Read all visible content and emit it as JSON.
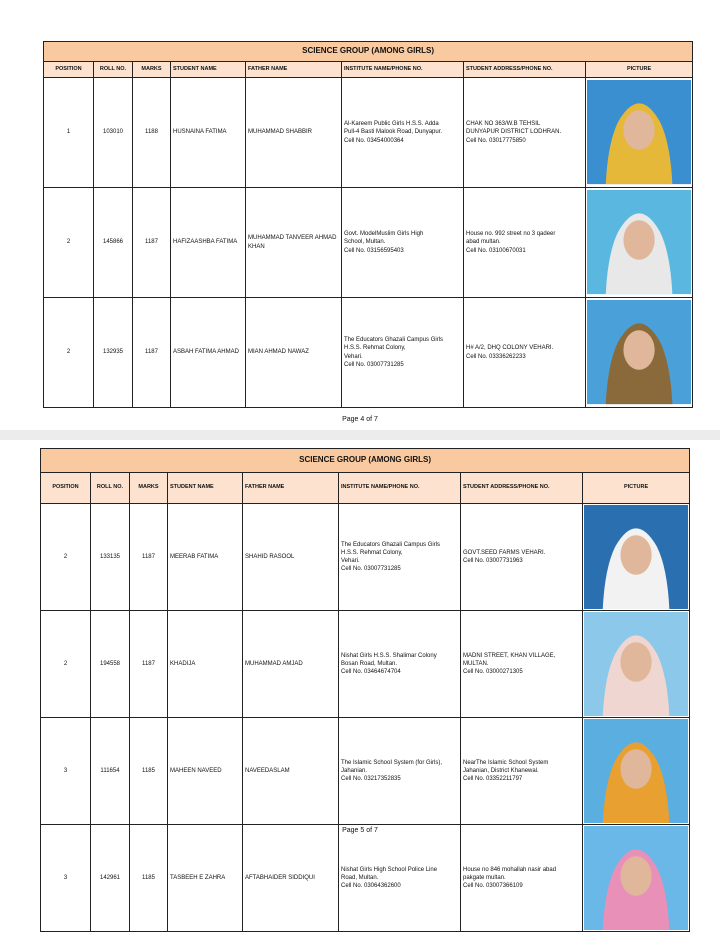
{
  "pages": [
    {
      "title": "SCIENCE GROUP (AMONG GIRLS)",
      "page_label": "Page 4 of 7",
      "rows": [
        {
          "position": "1",
          "roll": "103010",
          "marks": "1188",
          "student": "HUSNAINA FATIMA",
          "father": "MUHAMMAD SHABBIR",
          "institute": [
            "Al-Kareem Public Girls H.S.S. Adda",
            "Pull-4 Basti Malook Road, Dunyapur.",
            "Cell No. 03454000364"
          ],
          "address": [
            "CHAK NO 363/W.B TEHSIL",
            "DUNYAPUR DISTRICT LODHRAN.",
            "Cell No. 03017775850"
          ],
          "photo_colors": [
            "#3a8fd0",
            "#e6b83a"
          ]
        },
        {
          "position": "2",
          "roll": "145866",
          "marks": "1187",
          "student": "HAFIZAASHBA FATIMA",
          "father": "MUHAMMAD TANVEER AHMAD KHAN",
          "institute": [
            "Govt. ModelMuslim Girls High",
            "School, Multan.",
            "Cell No. 03156595403"
          ],
          "address": [
            "House no. 992 street no 3 qadeer",
            "abad multan.",
            "Cell No. 03100670031"
          ],
          "photo_colors": [
            "#5ab8e0",
            "#e8e8e8"
          ]
        },
        {
          "position": "2",
          "roll": "132935",
          "marks": "1187",
          "student": "ASBAH FATIMA AHMAD",
          "father": "MIAN AHMAD NAWAZ",
          "institute": [
            "The Educators Ghazali Campus Girls",
            "H.S.S. Rehmat Colony,",
            "Vehari.",
            "Cell No. 03007731285"
          ],
          "address": [
            "H# A/2, DHQ COLONY VEHARI.",
            "Cell No. 03336262233"
          ],
          "photo_colors": [
            "#4aa0d8",
            "#8a6a3a"
          ]
        }
      ]
    },
    {
      "title": "SCIENCE GROUP (AMONG GIRLS)",
      "page_label": "Page 5 of 7",
      "rows": [
        {
          "position": "2",
          "roll": "133135",
          "marks": "1187",
          "student": "MEERAB FATIMA",
          "father": "SHAHID RASOOL",
          "institute": [
            "The Educators Ghazali Campus Girls",
            "H.S.S. Rehmat Colony,",
            "Vehari.",
            "Cell No. 03007731285"
          ],
          "address": [
            "GOVT.SEED FARMS VEHARI.",
            "Cell No. 03007731963"
          ],
          "photo_colors": [
            "#2a6fb0",
            "#f2f2f2"
          ]
        },
        {
          "position": "2",
          "roll": "194558",
          "marks": "1187",
          "student": "KHADIJA",
          "father": "MUHAMMAD AMJAD",
          "institute": [
            "Nishat Girls H.S.S. Shalimar Colony",
            "Bosan Road, Multan.",
            "Cell No. 03464674704"
          ],
          "address": [
            "MADNI STREET, KHAN VILLAGE,",
            "MULTAN.",
            "Cell No. 03000271305"
          ],
          "photo_colors": [
            "#8cc8ea",
            "#f0d6d0"
          ]
        },
        {
          "position": "3",
          "roll": "111654",
          "marks": "1185",
          "student": "MAHEEN NAVEED",
          "father": "NAVEEDASLAM",
          "institute": [
            "The Islamic SchooI System (for Girls),",
            "Jahanian.",
            "Cell No. 03217352835"
          ],
          "address": [
            "NearThe Islamic School System",
            "Jahanian, District Khanewal.",
            "Cell No. 03352211797"
          ],
          "photo_colors": [
            "#5aaee0",
            "#e8a030"
          ]
        },
        {
          "position": "3",
          "roll": "142961",
          "marks": "1185",
          "student": "TASBEEH E ZAHRA",
          "father": "AFTABHAIDER SIDDIQUI",
          "institute": [
            "Nishat Girls High School Police Line",
            "Road, Multan.",
            "Cell No. 03064362600"
          ],
          "address": [
            "House no 846 mohallah nasir abad",
            "pakgate multan.",
            "Cell No. 03007366109"
          ],
          "photo_colors": [
            "#6ab8e8",
            "#e890b8"
          ]
        }
      ]
    }
  ],
  "headers": {
    "position": "POSITION",
    "roll": "ROLL NO.",
    "marks": "MARKS",
    "student": "STUDENT NAME",
    "father": "FATHER NAME",
    "institute": "INSTITUTE NAME/PHONE NO.",
    "address": "STUDENT ADDRESS/PHONE NO.",
    "picture": "PICTURE"
  }
}
